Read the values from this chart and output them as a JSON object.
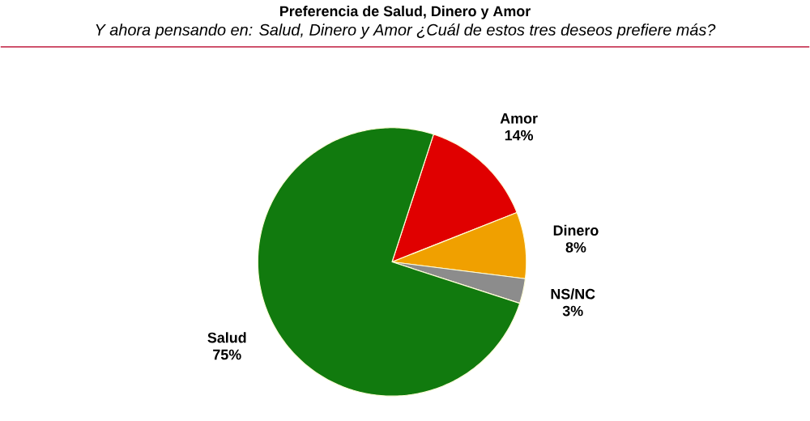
{
  "chart_data": {
    "type": "pie",
    "title": "Preferencia de Salud, Dinero y Amor",
    "subtitle": "Y ahora pensando en: Salud, Dinero y Amor ¿Cuál de estos tres deseos prefiere más?",
    "categories": [
      "Amor",
      "Dinero",
      "NS/NC",
      "Salud"
    ],
    "values": [
      14,
      8,
      3,
      75
    ],
    "colors": [
      "#e00000",
      "#f0a000",
      "#8c8c8c",
      "#117a0e"
    ],
    "value_labels": [
      "14%",
      "8%",
      "3%",
      "75%"
    ]
  }
}
